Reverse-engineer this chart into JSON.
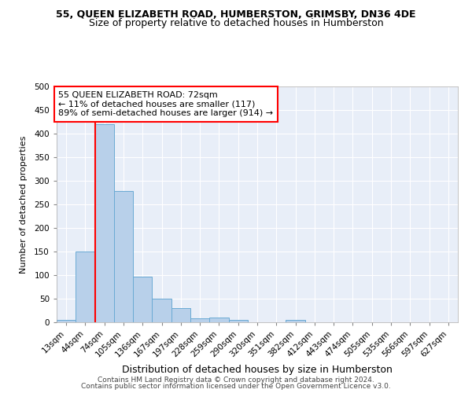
{
  "title": "55, QUEEN ELIZABETH ROAD, HUMBERSTON, GRIMSBY, DN36 4DE",
  "subtitle": "Size of property relative to detached houses in Humberston",
  "xlabel": "Distribution of detached houses by size in Humberston",
  "ylabel": "Number of detached properties",
  "categories": [
    "13sqm",
    "44sqm",
    "74sqm",
    "105sqm",
    "136sqm",
    "167sqm",
    "197sqm",
    "228sqm",
    "259sqm",
    "290sqm",
    "320sqm",
    "351sqm",
    "382sqm",
    "412sqm",
    "443sqm",
    "474sqm",
    "505sqm",
    "535sqm",
    "566sqm",
    "597sqm",
    "627sqm"
  ],
  "values": [
    5,
    150,
    420,
    278,
    96,
    50,
    30,
    8,
    10,
    5,
    0,
    0,
    5,
    0,
    0,
    0,
    0,
    0,
    0,
    0,
    0
  ],
  "bar_color": "#b8d0ea",
  "bar_edgecolor": "#6aaad4",
  "annotation_text": "55 QUEEN ELIZABETH ROAD: 72sqm\n← 11% of detached houses are smaller (117)\n89% of semi-detached houses are larger (914) →",
  "annotation_box_facecolor": "white",
  "annotation_box_edgecolor": "red",
  "redline_color": "red",
  "redline_index": 1.5,
  "ylim": [
    0,
    500
  ],
  "yticks": [
    0,
    50,
    100,
    150,
    200,
    250,
    300,
    350,
    400,
    450,
    500
  ],
  "bg_color": "#e8eef8",
  "grid_color": "white",
  "footer_line1": "Contains HM Land Registry data © Crown copyright and database right 2024.",
  "footer_line2": "Contains public sector information licensed under the Open Government Licence v3.0.",
  "title_fontsize": 9,
  "subtitle_fontsize": 9,
  "xlabel_fontsize": 9,
  "ylabel_fontsize": 8,
  "tick_fontsize": 7.5,
  "annotation_fontsize": 8,
  "footer_fontsize": 6.5
}
